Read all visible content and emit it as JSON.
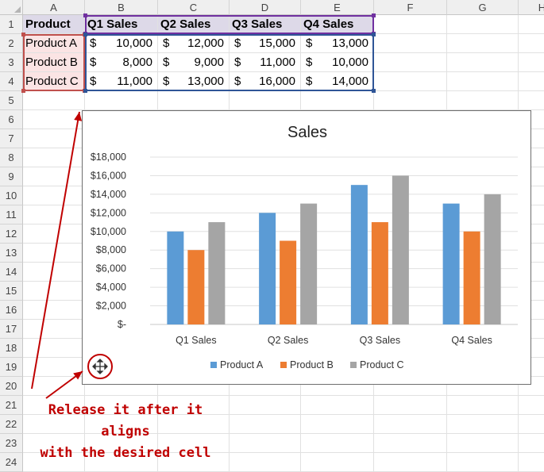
{
  "sheet": {
    "columns": [
      "A",
      "B",
      "C",
      "D",
      "E",
      "F",
      "G",
      "H"
    ],
    "rows": [
      "1",
      "2",
      "3",
      "4",
      "5",
      "6",
      "7",
      "8",
      "9",
      "10",
      "11",
      "12",
      "13",
      "14",
      "15",
      "16",
      "17",
      "18",
      "19",
      "20",
      "21",
      "22",
      "23",
      "24"
    ],
    "header_row": [
      "Product",
      "Q1 Sales",
      "Q2 Sales",
      "Q3 Sales",
      "Q4 Sales"
    ],
    "data_rows": [
      {
        "product": "Product A",
        "values": [
          "10,000",
          "12,000",
          "15,000",
          "13,000"
        ]
      },
      {
        "product": "Product B",
        "values": [
          "8,000",
          "9,000",
          "11,000",
          "10,000"
        ]
      },
      {
        "product": "Product C",
        "values": [
          "11,000",
          "13,000",
          "16,000",
          "14,000"
        ]
      }
    ],
    "currency_symbol": "$",
    "range_colors": {
      "header": "#7030a0",
      "product": "#c0504d",
      "values": "#2f5597"
    }
  },
  "chart_data": {
    "type": "bar",
    "title": "Sales",
    "categories": [
      "Q1 Sales",
      "Q2 Sales",
      "Q3 Sales",
      "Q4 Sales"
    ],
    "series": [
      {
        "name": "Product A",
        "values": [
          10000,
          12000,
          15000,
          13000
        ],
        "color": "#5b9bd5"
      },
      {
        "name": "Product B",
        "values": [
          8000,
          9000,
          11000,
          10000
        ],
        "color": "#ed7d31"
      },
      {
        "name": "Product C",
        "values": [
          11000,
          13000,
          16000,
          14000
        ],
        "color": "#a5a5a5"
      }
    ],
    "ylim": [
      0,
      18000
    ],
    "y_ticks": [
      0,
      2000,
      4000,
      6000,
      8000,
      10000,
      12000,
      14000,
      16000,
      18000
    ],
    "y_tick_labels": [
      "$-",
      "$2,000",
      "$4,000",
      "$6,000",
      "$8,000",
      "$10,000",
      "$12,000",
      "$14,000",
      "$16,000",
      "$18,000"
    ],
    "grid": true,
    "legend": "bottom",
    "move_handle_icon": "move-cross-arrows-icon"
  },
  "annotation": {
    "lines": [
      "Release it after it aligns",
      "with the desired cell"
    ],
    "color": "#c00000"
  }
}
